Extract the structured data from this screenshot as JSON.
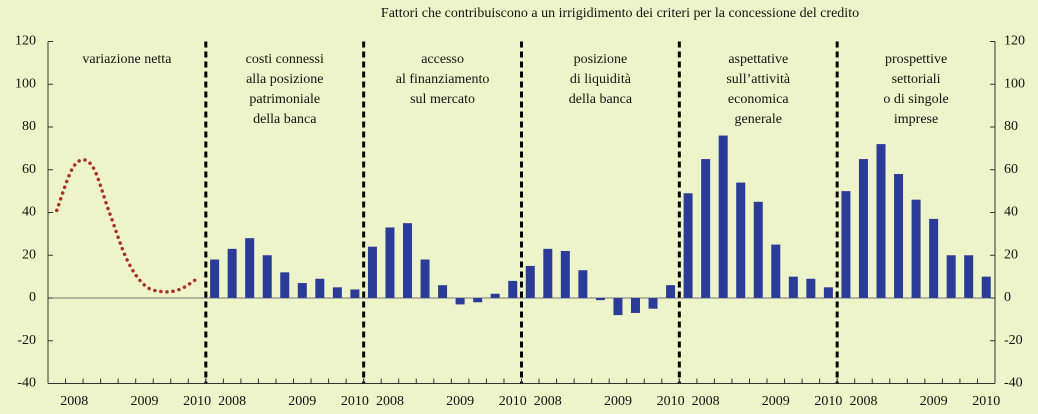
{
  "chart_data": {
    "title": "Fattori che contribuiscono a un irrigidimento dei criteri per la concessione del credito",
    "ylim": [
      -40,
      120
    ],
    "yticks": [
      -40,
      -20,
      0,
      20,
      40,
      60,
      80,
      100,
      120
    ],
    "y2lim": [
      -40,
      120
    ],
    "y2ticks": [
      -40,
      -20,
      0,
      20,
      40,
      60,
      80,
      100,
      120
    ],
    "panels": [
      {
        "type": "line",
        "title": [
          "variazione netta"
        ],
        "color": "#a8322a",
        "categories": [
          null,
          "2008",
          null,
          null,
          null,
          "2009",
          null,
          null,
          "2010"
        ],
        "values": [
          41,
          62,
          62,
          40,
          18,
          6,
          3,
          4,
          9
        ]
      },
      {
        "type": "bar",
        "title": [
          "costi connessi",
          "alla posizione",
          "patrimoniale",
          "della banca"
        ],
        "color": "#2b3c98",
        "categories": [
          null,
          "2008",
          null,
          null,
          null,
          "2009",
          null,
          null,
          "2010"
        ],
        "values": [
          18,
          23,
          28,
          20,
          12,
          7,
          9,
          5,
          4
        ]
      },
      {
        "type": "bar",
        "title": [
          "accesso",
          "al finanziamento",
          "sul mercato"
        ],
        "color": "#2b3c98",
        "categories": [
          null,
          "2008",
          null,
          null,
          null,
          "2009",
          null,
          null,
          "2010"
        ],
        "values": [
          24,
          33,
          35,
          18,
          6,
          -3,
          -2,
          2,
          8
        ]
      },
      {
        "type": "bar",
        "title": [
          "posizione",
          "di liquidità",
          "della banca"
        ],
        "color": "#2b3c98",
        "categories": [
          null,
          "2008",
          null,
          null,
          null,
          "2009",
          null,
          null,
          "2010"
        ],
        "values": [
          15,
          23,
          22,
          13,
          -1,
          -8,
          -7,
          -5,
          6
        ]
      },
      {
        "type": "bar",
        "title": [
          "aspettative",
          "sull’attività",
          "economica",
          "generale"
        ],
        "color": "#2b3c98",
        "categories": [
          null,
          "2008",
          null,
          null,
          null,
          "2009",
          null,
          null,
          "2010"
        ],
        "values": [
          49,
          65,
          76,
          54,
          45,
          25,
          10,
          9,
          5
        ]
      },
      {
        "type": "bar",
        "title": [
          "prospettive",
          "settoriali",
          "o di singole",
          "imprese"
        ],
        "color": "#2b3c98",
        "categories": [
          null,
          "2008",
          null,
          null,
          null,
          "2009",
          null,
          null,
          "2010"
        ],
        "values": [
          50,
          65,
          72,
          58,
          46,
          37,
          20,
          20,
          10
        ]
      }
    ]
  }
}
